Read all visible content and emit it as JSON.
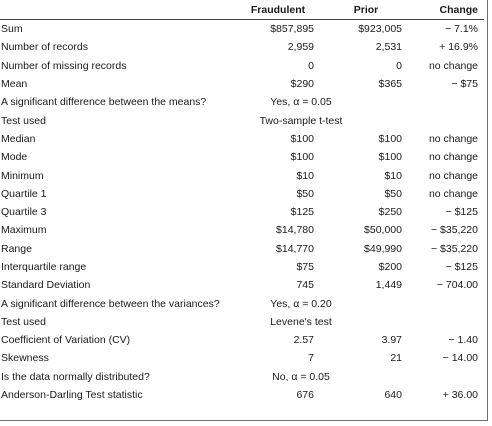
{
  "header": {
    "label": "",
    "fraudulent": "Fraudulent",
    "prior": "Prior",
    "change": "Change"
  },
  "rows": [
    {
      "label": "Sum",
      "fraudulent": "$857,895",
      "prior": "$923,005",
      "change": "− 7.1%"
    },
    {
      "label": "Number of records",
      "fraudulent": "2,959",
      "prior": "2,531",
      "change": "+ 16.9%"
    },
    {
      "label": "Number of missing records",
      "fraudulent": "0",
      "prior": "0",
      "change": "no change"
    },
    {
      "label": "Mean",
      "fraudulent": "$290",
      "prior": "$365",
      "change": "− $75"
    },
    {
      "label": "A significant difference between the means?",
      "span": "Yes, α = 0.05"
    },
    {
      "label": "Test used",
      "span": "Two-sample t-test"
    },
    {
      "label": "Median",
      "fraudulent": "$100",
      "prior": "$100",
      "change": "no change"
    },
    {
      "label": "Mode",
      "fraudulent": "$100",
      "prior": "$100",
      "change": "no change"
    },
    {
      "label": "Minimum",
      "fraudulent": "$10",
      "prior": "$10",
      "change": "no change"
    },
    {
      "label": "Quartile 1",
      "fraudulent": "$50",
      "prior": "$50",
      "change": "no change"
    },
    {
      "label": "Quartile 3",
      "fraudulent": "$125",
      "prior": "$250",
      "change": "− $125"
    },
    {
      "label": "Maximum",
      "fraudulent": "$14,780",
      "prior": "$50,000",
      "change": "− $35,220"
    },
    {
      "label": "Range",
      "fraudulent": "$14,770",
      "prior": "$49,990",
      "change": "− $35,220"
    },
    {
      "label": "Interquartile range",
      "fraudulent": "$75",
      "prior": "$200",
      "change": "− $125"
    },
    {
      "label": "Standard Deviation",
      "fraudulent": "745",
      "prior": "1,449",
      "change": "− 704.00"
    },
    {
      "label": "A significant difference between the variances?",
      "span": "Yes, α = 0.20"
    },
    {
      "label": "Test used",
      "span": "Levene's test"
    },
    {
      "label": "Coefficient of Variation (CV)",
      "fraudulent": "2.57",
      "prior": "3.97",
      "change": "− 1.40"
    },
    {
      "label": "Skewness",
      "fraudulent": "7",
      "prior": "21",
      "change": "− 14.00"
    },
    {
      "label": "Is the data normally distributed?",
      "span": "No, α = 0.05"
    },
    {
      "label": "Anderson-Darling Test statistic",
      "fraudulent": "676",
      "prior": "640",
      "change": "+ 36.00"
    }
  ]
}
